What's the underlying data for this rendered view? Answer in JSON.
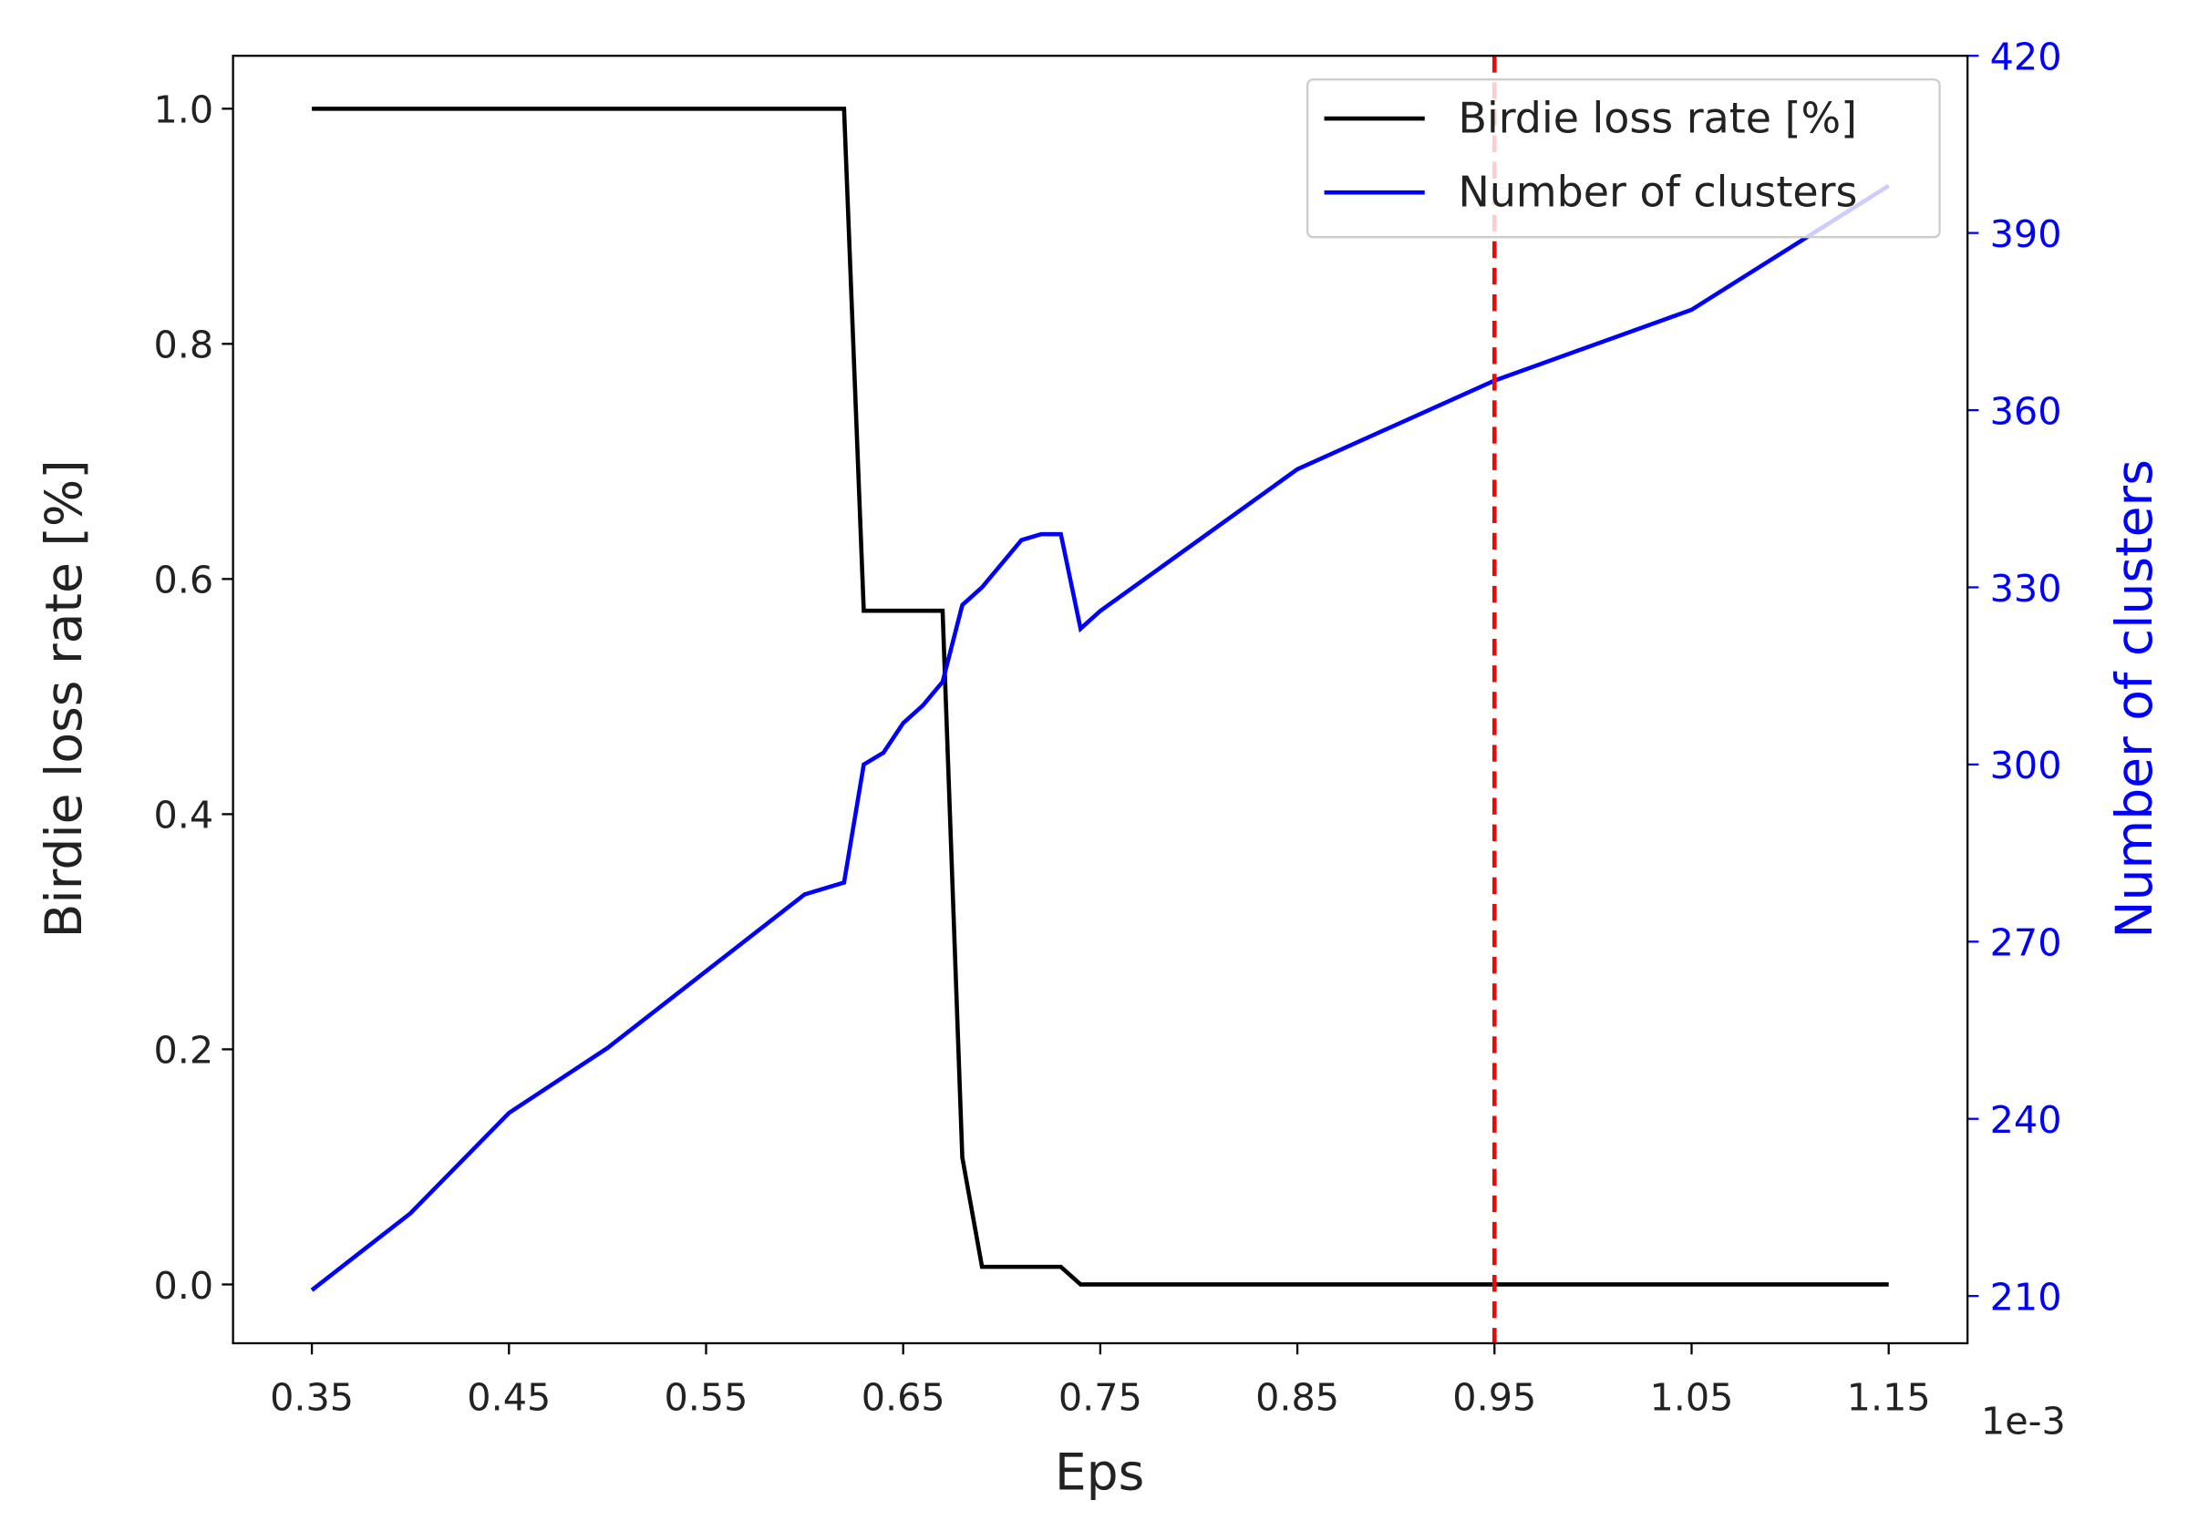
{
  "chart_data": {
    "type": "line",
    "x_label": "Eps",
    "x_offset_label": "1e-3",
    "y_label": "Birdie loss rate [%]",
    "y2_label": "Number of clusters",
    "x": [
      0.35,
      0.4,
      0.45,
      0.5,
      0.55,
      0.6,
      0.61,
      0.62,
      0.63,
      0.64,
      0.65,
      0.66,
      0.67,
      0.68,
      0.69,
      0.7,
      0.71,
      0.72,
      0.73,
      0.74,
      0.75,
      0.85,
      0.95,
      1.05,
      1.15
    ],
    "series": [
      {
        "name": "Birdie loss rate [%]",
        "color": "#000000",
        "axis": "y",
        "values": [
          1.0,
          1.0,
          1.0,
          1.0,
          1.0,
          1.0,
          1.0,
          1.0,
          0.573,
          0.573,
          0.573,
          0.573,
          0.573,
          0.108,
          0.015,
          0.015,
          0.015,
          0.015,
          0.015,
          0,
          0,
          0,
          0,
          0,
          0
        ]
      },
      {
        "name": "Number of clusters",
        "color": "#0000ff",
        "axis": "y2",
        "values": [
          211,
          224,
          241,
          252,
          265,
          278,
          279,
          280,
          300,
          302,
          307,
          310,
          314,
          327,
          330,
          334,
          338,
          339,
          339,
          323,
          326,
          350,
          365,
          377,
          398
        ]
      }
    ],
    "vline": {
      "x": 0.95,
      "color": "#ff0000"
    },
    "xlim": [
      0.31,
      1.19
    ],
    "xticks": [
      0.35,
      0.45,
      0.55,
      0.65,
      0.75,
      0.85,
      0.95,
      1.05,
      1.15
    ],
    "ylim": [
      -0.05,
      1.045
    ],
    "yticks": [
      {
        "value": 0,
        "label": "0.0"
      },
      0.2,
      0.4,
      0.6,
      0.8,
      {
        "value": 1,
        "label": "1.0"
      }
    ],
    "y2lim": [
      202,
      420
    ],
    "y2ticks": [
      210,
      240,
      270,
      300,
      330,
      360,
      390,
      420
    ],
    "y2_color": "#0000ff",
    "legend": "upper right"
  }
}
